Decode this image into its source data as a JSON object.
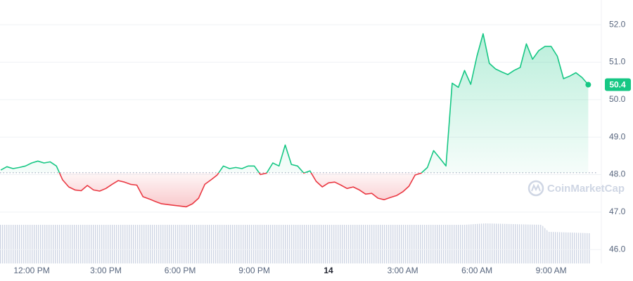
{
  "chart_data": {
    "type": "line",
    "x": [
      10.75,
      11,
      11.25,
      11.5,
      11.75,
      12,
      12.25,
      12.5,
      12.75,
      13,
      13.25,
      13.5,
      13.75,
      14,
      14.25,
      14.5,
      14.75,
      15,
      15.25,
      15.5,
      15.75,
      16,
      16.25,
      16.5,
      16.75,
      17,
      17.25,
      17.5,
      17.75,
      18,
      18.25,
      18.5,
      18.75,
      19,
      19.25,
      19.5,
      19.75,
      20,
      20.25,
      20.5,
      20.75,
      21,
      21.25,
      21.5,
      21.75,
      22,
      22.25,
      22.5,
      22.75,
      23,
      23.25,
      23.5,
      23.75,
      24,
      24.25,
      24.5,
      24.75,
      25,
      25.25,
      25.5,
      25.75,
      26,
      26.25,
      26.5,
      26.75,
      27,
      27.25,
      27.5,
      27.75,
      28,
      28.25,
      28.5,
      28.75,
      29,
      29.25,
      29.5,
      29.75,
      30,
      30.25,
      30.5,
      30.75,
      31,
      31.25,
      31.5,
      31.75,
      32,
      32.25,
      32.5,
      32.75,
      33,
      33.25,
      33.5,
      33.75,
      34,
      34.25,
      34.5
    ],
    "values": [
      48.12,
      48.21,
      48.16,
      48.19,
      48.23,
      48.31,
      48.36,
      48.31,
      48.34,
      48.23,
      47.86,
      47.67,
      47.59,
      47.57,
      47.71,
      47.59,
      47.56,
      47.63,
      47.74,
      47.84,
      47.8,
      47.74,
      47.72,
      47.41,
      47.35,
      47.28,
      47.22,
      47.2,
      47.18,
      47.16,
      47.14,
      47.22,
      47.37,
      47.74,
      47.86,
      47.99,
      48.23,
      48.16,
      48.19,
      48.16,
      48.23,
      48.23,
      48.0,
      48.04,
      48.31,
      48.23,
      48.79,
      48.27,
      48.23,
      48.04,
      48.1,
      47.82,
      47.67,
      47.78,
      47.8,
      47.72,
      47.63,
      47.67,
      47.59,
      47.48,
      47.5,
      47.37,
      47.33,
      47.39,
      47.44,
      47.54,
      47.69,
      47.99,
      48.04,
      48.19,
      48.64,
      48.44,
      48.23,
      50.44,
      50.33,
      50.78,
      50.41,
      51.16,
      51.76,
      50.97,
      50.82,
      50.74,
      50.67,
      50.78,
      50.86,
      51.49,
      51.08,
      51.31,
      51.42,
      51.42,
      51.16,
      50.56,
      50.63,
      50.72,
      50.59,
      50.4
    ],
    "baseline": 48.05,
    "up_color": "#16c784",
    "down_color": "#ea3943",
    "xlim": [
      10.72,
      35.03
    ],
    "xticks": [
      {
        "value": 12,
        "label": "12:00 PM"
      },
      {
        "value": 15,
        "label": "3:00 PM"
      },
      {
        "value": 18,
        "label": "6:00 PM"
      },
      {
        "value": 21,
        "label": "9:00 PM"
      },
      {
        "value": 24,
        "label": "14"
      },
      {
        "value": 27,
        "label": "3:00 AM"
      },
      {
        "value": 30,
        "label": "6:00 AM"
      },
      {
        "value": 33,
        "label": "9:00 AM"
      }
    ],
    "ylim": [
      45.16,
      52.66
    ],
    "yticks": [
      {
        "value": 46,
        "label": "46.0"
      },
      {
        "value": 47,
        "label": "47.0"
      },
      {
        "value": 48,
        "label": "48.0"
      },
      {
        "value": 49,
        "label": "49.0"
      },
      {
        "value": 50,
        "label": "50.0"
      },
      {
        "value": 51,
        "label": "51.0"
      },
      {
        "value": 52,
        "label": "52.0"
      }
    ],
    "grid": true,
    "watermark": "CoinMarketCap"
  }
}
